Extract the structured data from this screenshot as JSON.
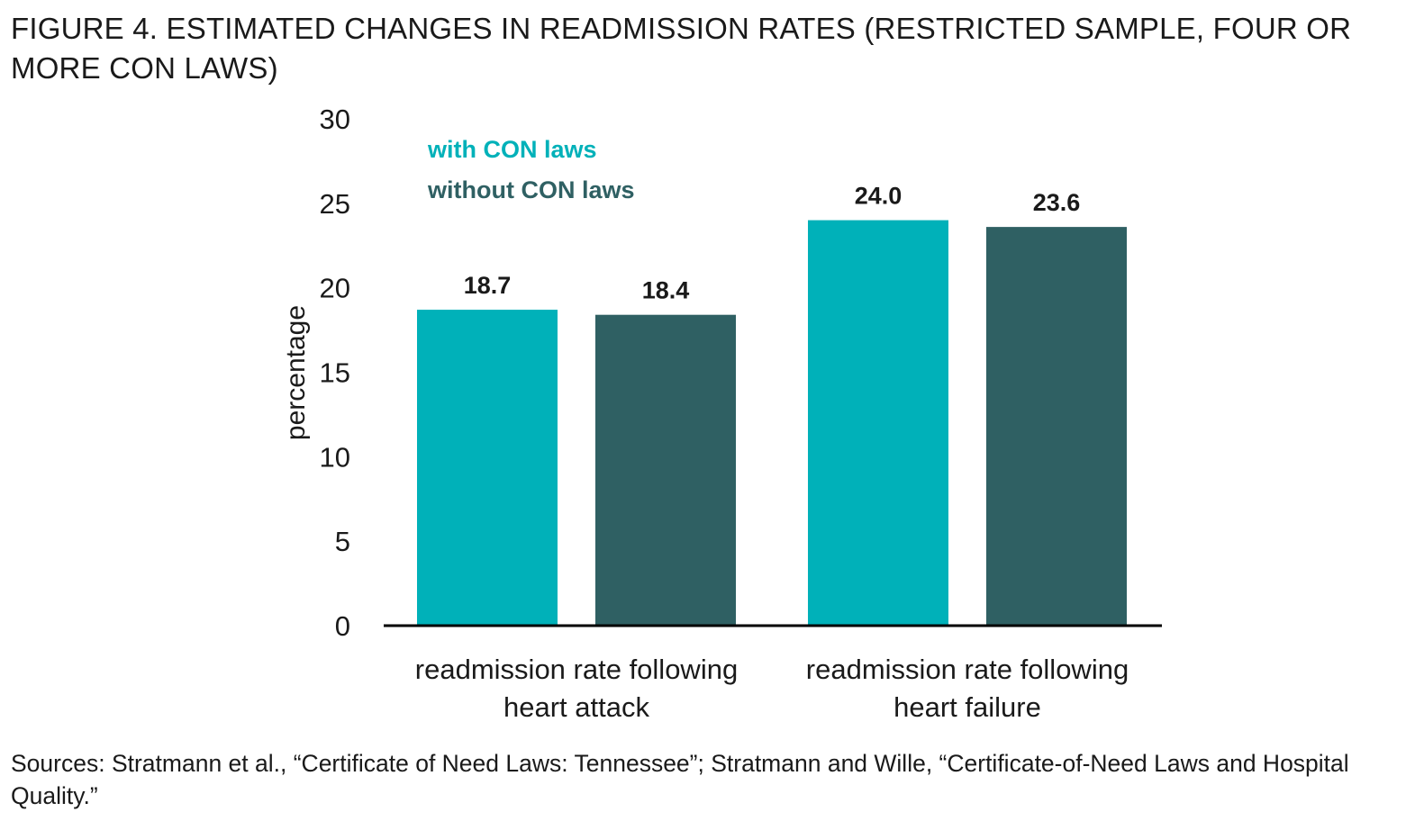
{
  "title": "FIGURE 4. ESTIMATED CHANGES IN READMISSION RATES (RESTRICTED SAMPLE, FOUR OR MORE CON LAWS)",
  "sources": "Sources: Stratmann et al., “Certificate of Need Laws: Tennessee”; Stratmann and Wille, “Certificate-of-Need Laws and Hospital Quality.”",
  "colors": {
    "with": "#00b1b9",
    "without": "#2f6063",
    "axis": "#000000"
  },
  "chart_data": {
    "type": "bar",
    "categories": [
      [
        "readmission rate following",
        "heart attack"
      ],
      [
        "readmission rate following",
        "heart failure"
      ]
    ],
    "series": [
      {
        "name": "with CON laws",
        "values": [
          18.7,
          24.0
        ],
        "labels": [
          "18.7",
          "24.0"
        ]
      },
      {
        "name": "without CON laws",
        "values": [
          18.4,
          23.6
        ],
        "labels": [
          "18.4",
          "23.6"
        ]
      }
    ],
    "ylabel": "percentage",
    "xlabel": "",
    "ylim": [
      0,
      30
    ],
    "yticks": [
      0,
      5,
      10,
      15,
      20,
      25,
      30
    ],
    "grid": false,
    "legend_position": "top-left"
  }
}
